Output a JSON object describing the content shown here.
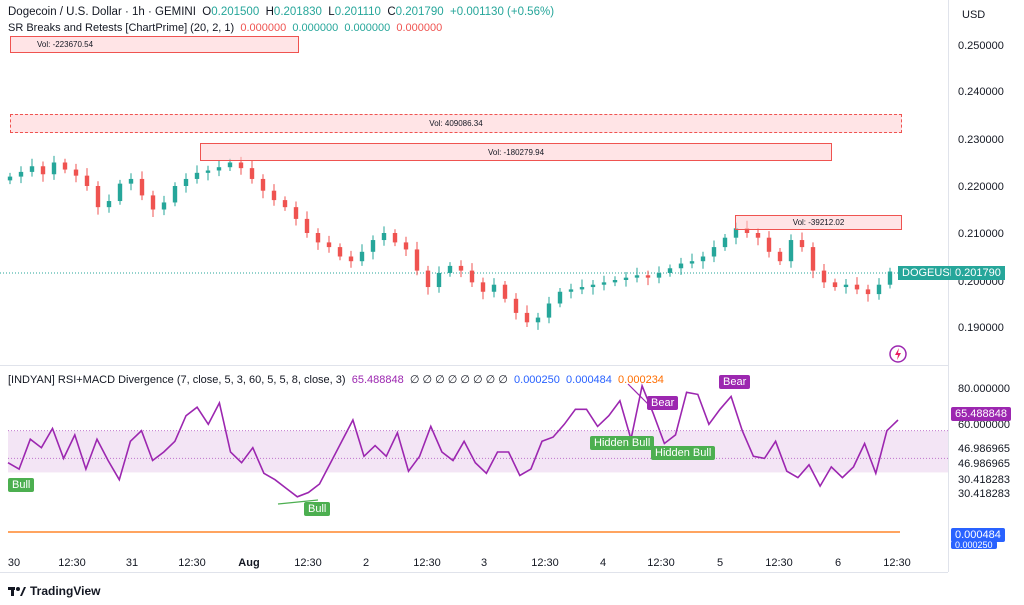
{
  "legend": {
    "title": "Dogecoin / U.S. Dollar · 1h · GEMINI",
    "o_label": "O",
    "o_val": "0.201500",
    "h_label": "H",
    "h_val": "0.201830",
    "l_label": "L",
    "l_val": "0.201110",
    "c_label": "C",
    "c_val": "0.201790",
    "change": "+0.001130 (+0.56%)",
    "sr_name": "SR Breaks and Retests [ChartPrime] (20, 2, 1)",
    "sr_vals": [
      "0.000000",
      "0.000000",
      "0.000000",
      "0.000000"
    ],
    "rsi_name": "[INDYAN] RSI+MACD Divergence (7, close, 5, 3, 60, 5, 5, 8, close, 3)",
    "rsi_val": "65.488848",
    "rsi_empties": "∅ ∅ ∅ ∅ ∅ ∅ ∅ ∅",
    "macd_blue1": "0.000250",
    "macd_blue2": "0.000484",
    "macd_orange": "0.000234"
  },
  "price_axis": {
    "currency": "USD",
    "labels": [
      "0.250000",
      "0.240000",
      "0.230000",
      "0.220000",
      "0.210000",
      "0.200000",
      "0.190000"
    ],
    "symbol_tag": "DOGEUSD",
    "price_tag": "0.201790"
  },
  "rsi_axis": {
    "labels": [
      "80.000000",
      "60.000000",
      "46.986965",
      "46.986965",
      "30.418283",
      "30.418283"
    ],
    "current_tag": "65.488848",
    "macd_tag": "0.000484",
    "macd_tag2": "0.000250"
  },
  "time_axis": {
    "labels": [
      "30",
      "12:30",
      "31",
      "12:30",
      "Aug",
      "12:30",
      "2",
      "12:30",
      "3",
      "12:30",
      "4",
      "12:30",
      "5",
      "12:30",
      "6",
      "12:30"
    ]
  },
  "vol_boxes": [
    "Vol: -223670.54",
    "Vol: 409086.34",
    "Vol: -180279.94",
    "Vol: -39212.02"
  ],
  "badges": {
    "bull1": "Bull",
    "bull2": "Bull",
    "hidden_bull1": "Hidden Bull",
    "hidden_bull2": "Hidden Bull",
    "bear1": "Bear",
    "bear2": "Bear"
  },
  "brand": "TradingView",
  "colors": {
    "up": "#26a69a",
    "down": "#ef5350",
    "rsi": "#9c27b0",
    "macd": "#2962ff",
    "signal": "#ff6d00"
  },
  "chart_data": {
    "type": "candlestick",
    "price_candles_close": [
      0.222,
      0.223,
      0.2242,
      0.2225,
      0.225,
      0.2235,
      0.2222,
      0.22,
      0.2155,
      0.2168,
      0.2205,
      0.2215,
      0.218,
      0.215,
      0.2165,
      0.22,
      0.2215,
      0.2228,
      0.2233,
      0.224,
      0.225,
      0.2238,
      0.2215,
      0.219,
      0.217,
      0.2155,
      0.213,
      0.21,
      0.208,
      0.207,
      0.205,
      0.204,
      0.206,
      0.2085,
      0.21,
      0.208,
      0.2065,
      0.202,
      0.1985,
      0.2015,
      0.203,
      0.202,
      0.1995,
      0.1975,
      0.199,
      0.196,
      0.193,
      0.191,
      0.192,
      0.195,
      0.1975,
      0.198,
      0.1985,
      0.199,
      0.1995,
      0.2,
      0.2005,
      0.201,
      0.2005,
      0.2015,
      0.2025,
      0.2035,
      0.204,
      0.205,
      0.207,
      0.209,
      0.211,
      0.21,
      0.209,
      0.206,
      0.204,
      0.2085,
      0.207,
      0.202,
      0.1995,
      0.1985,
      0.199,
      0.198,
      0.197,
      0.199,
      0.2018
    ],
    "rsi_values": [
      45,
      42,
      56,
      52,
      61,
      47,
      58,
      42,
      56,
      46,
      37,
      55,
      60,
      46,
      50,
      55,
      67,
      71,
      63,
      73,
      50,
      45,
      52,
      40,
      37,
      33,
      29,
      31,
      35,
      45,
      55,
      65,
      48,
      53,
      48,
      59,
      41,
      48,
      62,
      50,
      46,
      55,
      45,
      40,
      50,
      50,
      39,
      42,
      55,
      57,
      63,
      70,
      70,
      62,
      67,
      74,
      56,
      81,
      68,
      54,
      58,
      78,
      77,
      63,
      70,
      76,
      60,
      48,
      47,
      55,
      41,
      38,
      44,
      34,
      43,
      38,
      43,
      54,
      40,
      60,
      65
    ],
    "rsi_ylim": [
      20,
      85
    ],
    "levels": [
      80,
      60,
      46.986965,
      30.418283
    ]
  }
}
